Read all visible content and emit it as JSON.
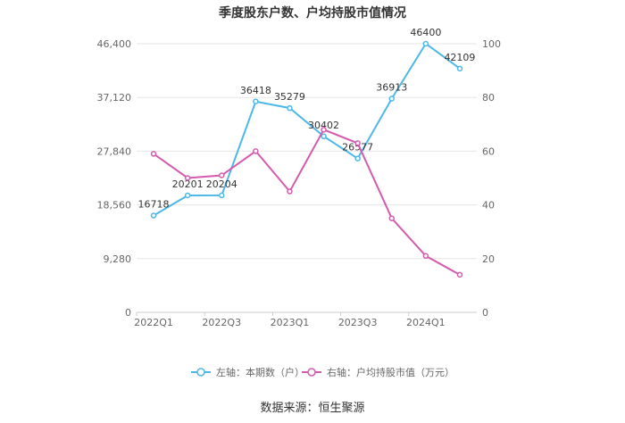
{
  "chart_data": {
    "type": "line",
    "title": "季度股东户数、户均持股市值情况",
    "categories": [
      "2022Q1",
      "2022Q2",
      "2022Q3",
      "2022Q4",
      "2023Q1",
      "2023Q2",
      "2023Q3",
      "2023Q4",
      "2024Q1",
      "2024Q2"
    ],
    "x_tick_labels": [
      "2022Q1",
      "2022Q3",
      "2023Q1",
      "2023Q3",
      "2024Q1"
    ],
    "y_left": {
      "ticks": [
        0,
        9280,
        18560,
        27840,
        37120,
        46400
      ],
      "tick_labels": [
        "0",
        "9,280",
        "18,560",
        "27,840",
        "37,120",
        "46,400"
      ],
      "ylim": [
        0,
        46400
      ]
    },
    "y_right": {
      "ticks": [
        0,
        20,
        40,
        60,
        80,
        100
      ],
      "tick_labels": [
        "0",
        "20",
        "40",
        "60",
        "80",
        "100"
      ],
      "ylim": [
        0,
        100
      ]
    },
    "grid": true,
    "legend_position": "bottom",
    "series": [
      {
        "name": "左轴：本期数（户）",
        "axis": "left",
        "color": "#4db8e8",
        "values": [
          16718,
          20201,
          20204,
          36418,
          35279,
          30402,
          26577,
          36913,
          46400,
          42109
        ],
        "data_labels": [
          "16718",
          "20201",
          "20204",
          "36418",
          "35279",
          "30402",
          "26577",
          "36913",
          "46400",
          "42109"
        ]
      },
      {
        "name": "右轴：户均持股市值（万元）",
        "axis": "right",
        "color": "#d45bae",
        "values": [
          59,
          50,
          51,
          60,
          45,
          68,
          63,
          35,
          21,
          14
        ]
      }
    ],
    "source": "数据来源：恒生聚源"
  }
}
